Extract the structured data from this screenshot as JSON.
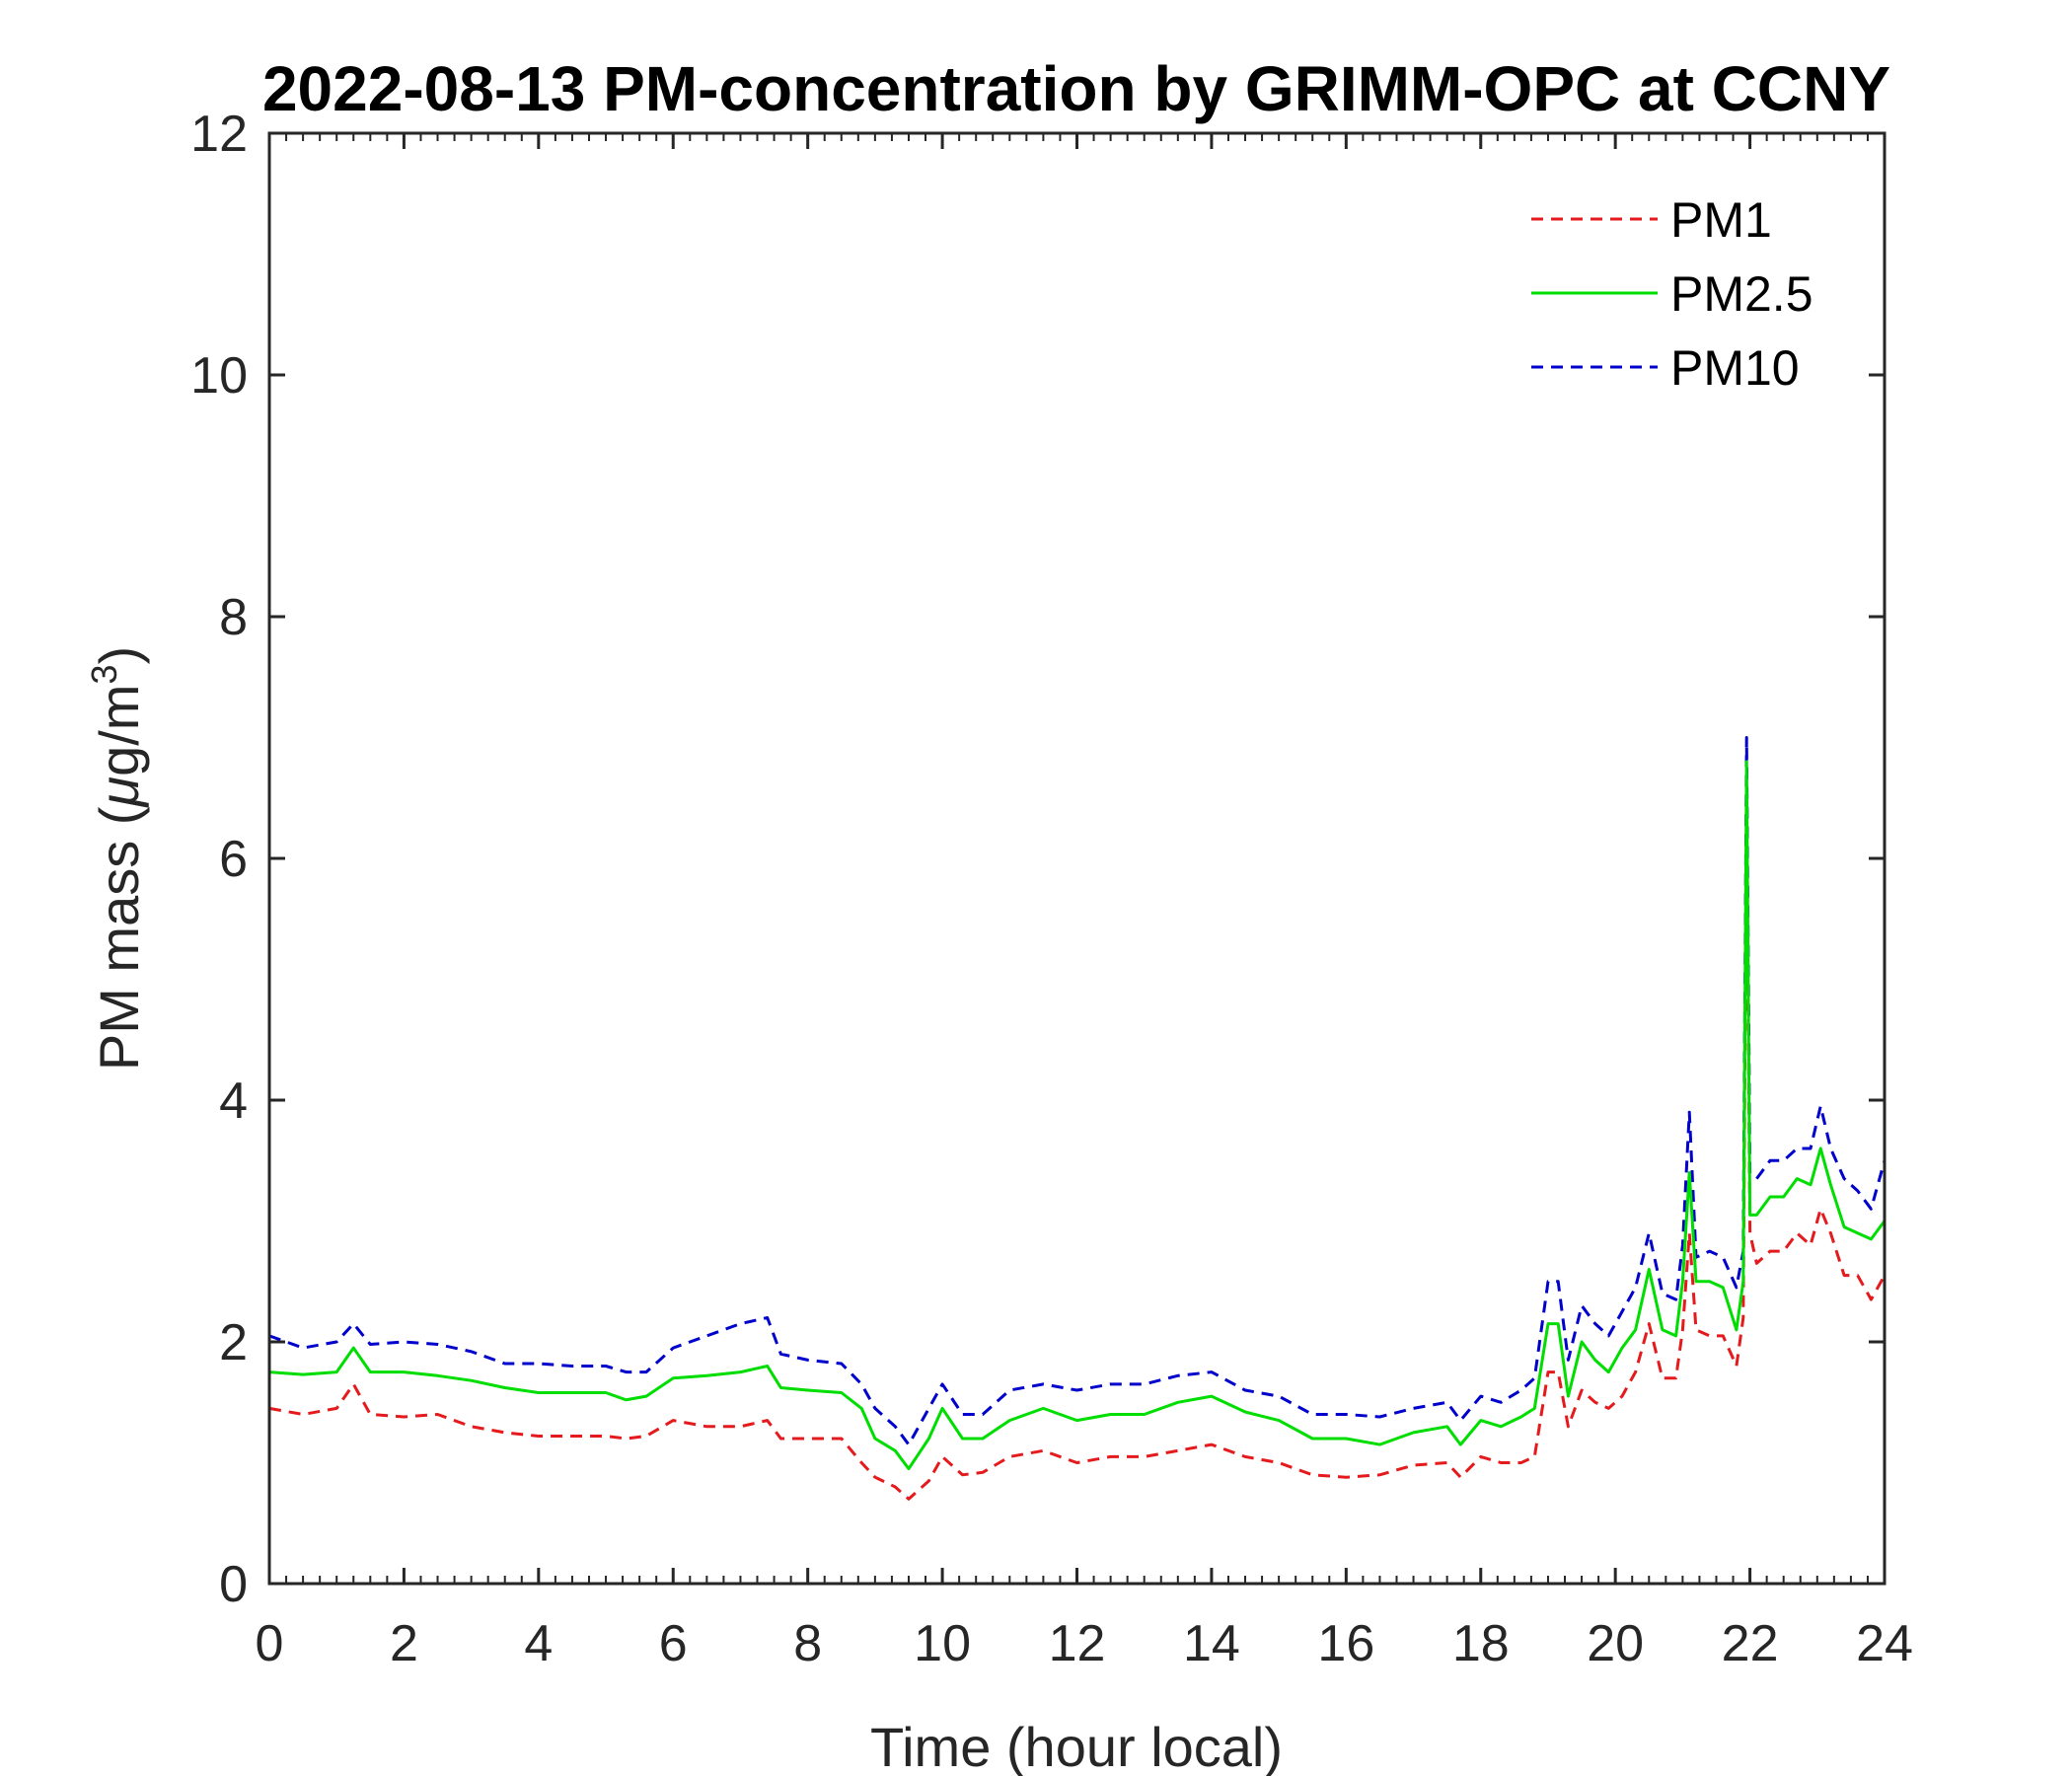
{
  "chart_data": {
    "type": "line",
    "title": "2022-08-13 PM-concentration by GRIMM-OPC at CCNY",
    "xlabel": "Time (hour local)",
    "ylabel_main": "PM mass (",
    "ylabel_mu": "μ",
    "ylabel_unit": "g/m",
    "ylabel_sup": "3",
    "ylabel_close": ")",
    "xlim": [
      0,
      24
    ],
    "ylim": [
      0,
      12
    ],
    "xticks": [
      "0",
      "2",
      "4",
      "6",
      "8",
      "10",
      "12",
      "14",
      "16",
      "18",
      "20",
      "22",
      "24"
    ],
    "yticks": [
      "0",
      "2",
      "4",
      "6",
      "8",
      "10",
      "12"
    ],
    "grid": false,
    "legend_position": "top-right",
    "x": [
      0.0,
      0.5,
      1.0,
      1.25,
      1.5,
      2.0,
      2.5,
      3.0,
      3.5,
      4.0,
      4.5,
      5.0,
      5.3,
      5.6,
      6.0,
      6.5,
      7.0,
      7.4,
      7.6,
      8.0,
      8.5,
      8.8,
      9.0,
      9.3,
      9.5,
      9.8,
      10.0,
      10.3,
      10.6,
      11.0,
      11.5,
      12.0,
      12.5,
      13.0,
      13.5,
      14.0,
      14.5,
      15.0,
      15.5,
      16.0,
      16.5,
      17.0,
      17.5,
      17.7,
      18.0,
      18.3,
      18.6,
      18.8,
      19.0,
      19.15,
      19.3,
      19.5,
      19.7,
      19.9,
      20.1,
      20.3,
      20.5,
      20.7,
      20.9,
      21.0,
      21.1,
      21.2,
      21.4,
      21.6,
      21.8,
      21.9,
      21.95,
      22.0,
      22.1,
      22.3,
      22.5,
      22.7,
      22.9,
      23.05,
      23.2,
      23.4,
      23.6,
      23.8,
      24.0
    ],
    "series": [
      {
        "name": "PM1",
        "color": "#e41a1c",
        "dash": "dashed",
        "values": [
          1.45,
          1.4,
          1.45,
          1.65,
          1.4,
          1.38,
          1.4,
          1.3,
          1.25,
          1.22,
          1.22,
          1.22,
          1.2,
          1.22,
          1.35,
          1.3,
          1.3,
          1.35,
          1.2,
          1.2,
          1.2,
          1.0,
          0.88,
          0.8,
          0.7,
          0.85,
          1.05,
          0.9,
          0.92,
          1.05,
          1.1,
          1.0,
          1.05,
          1.05,
          1.1,
          1.15,
          1.05,
          1.0,
          0.9,
          0.88,
          0.9,
          0.98,
          1.0,
          0.88,
          1.05,
          1.0,
          1.0,
          1.05,
          1.75,
          1.75,
          1.3,
          1.6,
          1.5,
          1.45,
          1.55,
          1.75,
          2.15,
          1.7,
          1.7,
          2.1,
          2.9,
          2.1,
          2.05,
          2.05,
          1.8,
          2.2,
          6.4,
          2.9,
          2.65,
          2.75,
          2.75,
          2.9,
          2.8,
          3.1,
          2.9,
          2.55,
          2.55,
          2.35,
          2.55
        ]
      },
      {
        "name": "PM2.5",
        "color": "#00dd00",
        "dash": "solid",
        "values": [
          1.75,
          1.73,
          1.75,
          1.95,
          1.75,
          1.75,
          1.72,
          1.68,
          1.62,
          1.58,
          1.58,
          1.58,
          1.52,
          1.55,
          1.7,
          1.72,
          1.75,
          1.8,
          1.62,
          1.6,
          1.58,
          1.45,
          1.2,
          1.1,
          0.95,
          1.2,
          1.45,
          1.2,
          1.2,
          1.35,
          1.45,
          1.35,
          1.4,
          1.4,
          1.5,
          1.55,
          1.42,
          1.35,
          1.2,
          1.2,
          1.15,
          1.25,
          1.3,
          1.15,
          1.35,
          1.3,
          1.38,
          1.45,
          2.15,
          2.15,
          1.55,
          2.0,
          1.85,
          1.75,
          1.95,
          2.1,
          2.6,
          2.1,
          2.05,
          2.5,
          3.4,
          2.5,
          2.5,
          2.45,
          2.1,
          2.5,
          6.8,
          3.05,
          3.05,
          3.2,
          3.2,
          3.35,
          3.3,
          3.6,
          3.3,
          2.95,
          2.9,
          2.85,
          3.0
        ]
      },
      {
        "name": "PM10",
        "color": "#0000cc",
        "dash": "dashed",
        "values": [
          2.05,
          1.95,
          2.0,
          2.15,
          1.98,
          2.0,
          1.98,
          1.92,
          1.82,
          1.82,
          1.8,
          1.8,
          1.75,
          1.75,
          1.95,
          2.05,
          2.15,
          2.2,
          1.9,
          1.85,
          1.82,
          1.65,
          1.45,
          1.3,
          1.15,
          1.45,
          1.65,
          1.4,
          1.4,
          1.6,
          1.65,
          1.6,
          1.65,
          1.65,
          1.72,
          1.75,
          1.6,
          1.55,
          1.4,
          1.4,
          1.38,
          1.45,
          1.5,
          1.35,
          1.55,
          1.5,
          1.6,
          1.7,
          2.5,
          2.5,
          1.85,
          2.3,
          2.15,
          2.05,
          2.25,
          2.45,
          2.9,
          2.4,
          2.35,
          2.8,
          3.9,
          2.7,
          2.75,
          2.7,
          2.45,
          2.75,
          7.0,
          3.4,
          3.35,
          3.5,
          3.5,
          3.6,
          3.6,
          3.95,
          3.6,
          3.35,
          3.25,
          3.1,
          3.5
        ]
      }
    ]
  }
}
